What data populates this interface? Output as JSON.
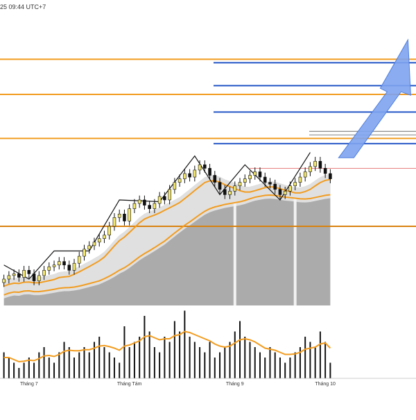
{
  "header": {
    "timestamp": "25 09:44 UTC+7"
  },
  "colors": {
    "candle_up": "#f3e66c",
    "candle_down": "#111111",
    "ma_fast": "#f29c1f",
    "ma_slow": "#f29c1f",
    "support_resistance": "#f29c1f",
    "target_lines": "#2456c7",
    "arrow": "#7ea3ee",
    "cloud": "#9c9c9c",
    "volume_bar": "#111111",
    "volume_ma": "#f29c1f"
  },
  "chart_data": {
    "type": "candlestick",
    "x_axis_labels": [
      "Tháng 7",
      "Tháng Tám",
      "Tháng 9",
      "Tháng 10"
    ],
    "price_series": {
      "close": [
        9.15,
        9.17,
        9.18,
        9.16,
        9.2,
        9.18,
        9.14,
        9.17,
        9.2,
        9.22,
        9.23,
        9.25,
        9.23,
        9.2,
        9.24,
        9.28,
        9.32,
        9.34,
        9.36,
        9.38,
        9.4,
        9.45,
        9.5,
        9.52,
        9.48,
        9.55,
        9.58,
        9.6,
        9.57,
        9.55,
        9.58,
        9.62,
        9.6,
        9.66,
        9.7,
        9.72,
        9.75,
        9.73,
        9.77,
        9.8,
        9.78,
        9.74,
        9.7,
        9.66,
        9.63,
        9.65,
        9.68,
        9.7,
        9.72,
        9.74,
        9.76,
        9.73,
        9.7,
        9.69,
        9.66,
        9.63,
        9.65,
        9.68,
        9.7,
        9.73,
        9.76,
        9.79,
        9.82,
        9.78,
        9.75,
        9.72
      ],
      "up": [
        true,
        true,
        true,
        false,
        true,
        false,
        false,
        true,
        true,
        true,
        true,
        true,
        false,
        false,
        true,
        true,
        true,
        true,
        true,
        true,
        true,
        true,
        true,
        true,
        false,
        true,
        true,
        true,
        false,
        false,
        true,
        true,
        false,
        true,
        true,
        true,
        true,
        false,
        true,
        true,
        false,
        false,
        false,
        false,
        false,
        true,
        true,
        true,
        true,
        true,
        true,
        false,
        false,
        false,
        false,
        false,
        true,
        true,
        true,
        true,
        true,
        true,
        true,
        false,
        false,
        false
      ],
      "zigzag_highs_idx": [
        0,
        10,
        23,
        38,
        48,
        61
      ]
    },
    "volume_series": {
      "values": [
        5,
        4,
        3,
        2,
        3,
        4,
        3,
        5,
        6,
        4,
        3,
        5,
        7,
        6,
        4,
        5,
        6,
        5,
        7,
        8,
        6,
        5,
        4,
        3,
        10,
        6,
        7,
        8,
        12,
        9,
        6,
        5,
        8,
        7,
        11,
        9,
        13,
        8,
        7,
        6,
        5,
        7,
        4,
        5,
        6,
        7,
        9,
        11,
        8,
        7,
        6,
        5,
        4,
        6,
        5,
        4,
        3,
        4,
        5,
        6,
        8,
        7,
        6,
        9,
        7,
        3
      ],
      "ma": [
        4,
        4,
        3.6,
        3.2,
        3.3,
        3.5,
        3.4,
        3.8,
        4.3,
        4.4,
        4.2,
        4.6,
        5.2,
        5.4,
        5.3,
        5.3,
        5.5,
        5.5,
        5.8,
        6.2,
        6.3,
        6.1,
        5.8,
        5.4,
        6.2,
        6.4,
        6.8,
        7.2,
        8.0,
        8.2,
        7.8,
        7.4,
        7.6,
        7.6,
        8.2,
        8.4,
        9.0,
        8.8,
        8.4,
        8.0,
        7.6,
        7.2,
        6.6,
        6.2,
        6.0,
        6.2,
        6.8,
        7.4,
        7.6,
        7.4,
        7.0,
        6.4,
        5.8,
        5.6,
        5.4,
        5.0,
        4.6,
        4.6,
        4.7,
        5.0,
        5.6,
        5.8,
        6.0,
        6.6,
        6.8,
        5.8
      ]
    },
    "horizontal_levels": [
      {
        "kind": "resistance",
        "price": 10.4
      },
      {
        "kind": "resistance",
        "price": 10.2
      },
      {
        "kind": "resistance",
        "price": 9.95
      },
      {
        "kind": "support",
        "price": 9.45
      }
    ],
    "target_levels": [
      10.38,
      10.25,
      10.1,
      9.92
    ],
    "thin_levels": [
      9.99,
      9.97
    ],
    "current_price_level": 9.78
  }
}
